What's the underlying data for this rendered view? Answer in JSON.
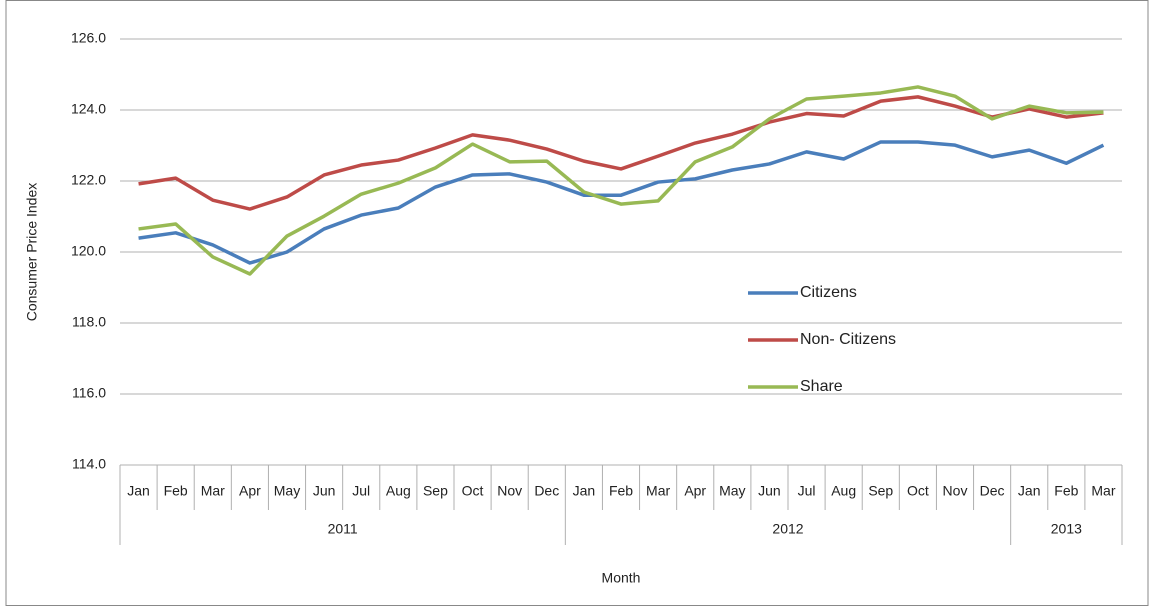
{
  "chart_data": {
    "type": "line",
    "x_label": "Month",
    "y_label": "Consumer Price Index",
    "category_groups": [
      {
        "name": "2011",
        "categories": [
          "Jan",
          "Feb",
          "Mar",
          "Apr",
          "May",
          "Jun",
          "Jul",
          "Aug",
          "Sep",
          "Oct",
          "Nov",
          "Dec"
        ]
      },
      {
        "name": "2012",
        "categories": [
          "Jan",
          "Feb",
          "Mar",
          "Apr",
          "May",
          "Jun",
          "Jul",
          "Aug",
          "Sep",
          "Oct",
          "Nov",
          "Dec"
        ]
      },
      {
        "name": "2013",
        "categories": [
          "Jan",
          "Feb",
          "Mar"
        ]
      }
    ],
    "series": [
      {
        "name": "Citizens",
        "color": "#4a7ebb",
        "values": [
          120.39,
          120.54,
          120.2,
          119.69,
          120.0,
          120.65,
          121.04,
          121.24,
          121.83,
          122.17,
          122.2,
          121.97,
          121.6,
          121.6,
          121.97,
          122.06,
          122.31,
          122.48,
          122.82,
          122.62,
          123.1,
          123.1,
          123.01,
          122.68,
          122.87,
          122.5,
          123.01
        ]
      },
      {
        "name": "Non- Citizens",
        "color": "#be4b48",
        "values": [
          121.92,
          122.08,
          121.46,
          121.21,
          121.55,
          122.17,
          122.45,
          122.59,
          122.93,
          123.3,
          123.15,
          122.9,
          122.56,
          122.34,
          122.7,
          123.07,
          123.32,
          123.66,
          123.9,
          123.83,
          124.25,
          124.37,
          124.11,
          123.8,
          124.03,
          123.8,
          123.92
        ]
      },
      {
        "name": "Share",
        "color": "#98b954",
        "values": [
          120.65,
          120.79,
          119.86,
          119.38,
          120.45,
          121.01,
          121.63,
          121.94,
          122.37,
          123.04,
          122.54,
          122.56,
          121.69,
          121.35,
          121.44,
          122.54,
          122.96,
          123.75,
          124.31,
          124.39,
          124.48,
          124.65,
          124.39,
          123.75,
          124.11,
          123.92,
          123.94
        ]
      }
    ],
    "ylim": [
      114,
      126
    ],
    "yticks": [
      {
        "value": 114,
        "label": "114.0"
      },
      {
        "value": 116,
        "label": "116.0"
      },
      {
        "value": 118,
        "label": "118.0"
      },
      {
        "value": 120,
        "label": "120.0"
      },
      {
        "value": 122,
        "label": "122.0"
      },
      {
        "value": 124,
        "label": "124.0"
      },
      {
        "value": 126,
        "label": "126.0"
      }
    ],
    "grid": true,
    "legend": "inside-right"
  }
}
